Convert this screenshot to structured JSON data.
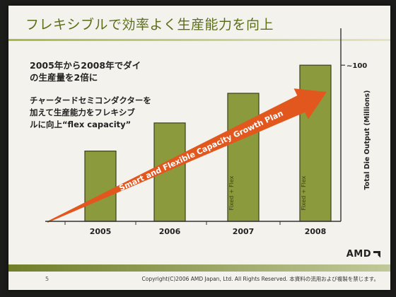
{
  "slide": {
    "title": "フレキシブルで効率よく生産能力を向上",
    "bullet1_line1": "2005年から2008年でダイ",
    "bullet1_line2": "の生産量を2倍に",
    "bullet2_line1": "チャータードセミコンダクターを",
    "bullet2_line2": "加えて生産能力をフレキシブ",
    "bullet2_line3_prefix": "ルに向上",
    "bullet2_line3_en": "“flex capacity”",
    "logo": "AMD",
    "page_number": "5",
    "copyright": "Copyright(C)2006 AMD Japan, Ltd. All Rights Reserved. 本資料の流用および複製を禁じます。"
  },
  "chart_data": {
    "type": "bar",
    "categories": [
      "2005",
      "2006",
      "2007",
      "2008"
    ],
    "values": [
      45,
      63,
      82,
      100
    ],
    "ylabel": "Total Die Output (Millions)",
    "ytick_label": "~100",
    "ytick_value": 100,
    "ylim": [
      0,
      120
    ],
    "bar_annotations": [
      "",
      "",
      "Fixed + Flex",
      "Fixed + Flex"
    ],
    "arrow_label": "Smart and Flexible Capacity Growth Plan",
    "colors": {
      "bar": "#8c9a3e",
      "bar_edge": "#3a3f1a",
      "arrow": "#e2571e",
      "axis": "#333333"
    }
  }
}
